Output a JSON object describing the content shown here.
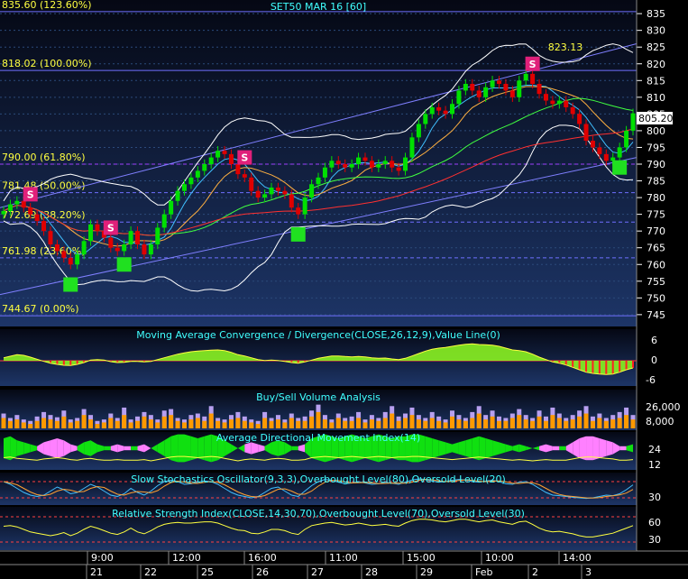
{
  "title": "SET50 MAR 16  [60]",
  "price_tag": "805.20",
  "peak_label": "823.13",
  "fib_levels": [
    {
      "label": "835.60 (123.60%)",
      "value": 835.6
    },
    {
      "label": "818.02 (100.00%)",
      "value": 818.02
    },
    {
      "label": "790.00 (61.80%)",
      "value": 790.0
    },
    {
      "label": "781.48 (50.00%)",
      "value": 781.48
    },
    {
      "label": "772.69 (38.20%)",
      "value": 772.69
    },
    {
      "label": "761.98 (23.60%)",
      "value": 761.98
    },
    {
      "label": "744.67 (0.00%)",
      "value": 744.67
    }
  ],
  "panels": {
    "macd": {
      "title": "Moving Average Convergence / Divergence(CLOSE,26,12,9),Value Line(0)",
      "ticks": [
        "6",
        "0",
        "-6"
      ]
    },
    "volume": {
      "title": "Buy/Sell Volume Analysis",
      "ticks": [
        "26,000",
        "8,000"
      ]
    },
    "adx": {
      "title": "Average Directional Movement Index(14)",
      "ticks": [
        "24",
        "12"
      ]
    },
    "stoch": {
      "title": "Slow Stochastics Oscillator(9,3,3),Overbought Level(80),Oversold Level(20)",
      "ticks": [
        "30"
      ]
    },
    "rsi": {
      "title": "Relative Strength Index(CLOSE,14,30,70),Overbought Level(70),Oversold Level(30)",
      "ticks": [
        "60",
        "30"
      ]
    }
  },
  "time_axis": {
    "hours": [
      "9:00",
      "12:00",
      "16:00",
      "11:00",
      "15:00",
      "10:00",
      "14:00"
    ],
    "days": [
      "21",
      "22",
      "25",
      "26",
      "27",
      "28",
      "29",
      "Feb",
      "2",
      "3"
    ]
  },
  "colors": {
    "bull": "#00e000",
    "bear": "#e00000",
    "signal_buy": "#20e020",
    "signal_sell": "#e0207a",
    "text": "#ffff40",
    "axis_text": "#ffffff"
  },
  "chart_data": {
    "type": "candlestick",
    "symbol": "SET50 MAR 16",
    "interval": "60",
    "ylim": [
      742,
      838
    ],
    "y_ticks": [
      835,
      830,
      825,
      820,
      815,
      810,
      805,
      800,
      795,
      790,
      785,
      780,
      775,
      770,
      765,
      760,
      755,
      750,
      745
    ],
    "last_price": 805.2,
    "high_annotation": 823.13,
    "close": [
      776,
      778,
      779,
      777,
      775,
      773,
      770,
      766,
      764,
      762,
      760,
      763,
      767,
      772,
      770,
      768,
      765,
      764,
      766,
      770,
      766,
      763,
      766,
      771,
      775,
      779,
      782,
      784,
      786,
      788,
      790,
      792,
      794,
      793,
      790,
      787,
      786,
      782,
      780,
      781,
      783,
      782,
      781,
      777,
      775,
      780,
      784,
      786,
      789,
      791,
      790,
      789,
      790,
      792,
      791,
      789,
      790,
      791,
      789,
      788,
      792,
      798,
      802,
      805,
      807,
      806,
      805,
      808,
      812,
      814,
      812,
      810,
      813,
      815,
      814,
      812,
      810,
      815,
      817,
      814,
      811,
      809,
      808,
      809,
      807,
      805,
      802,
      797,
      795,
      793,
      791,
      792,
      795,
      800,
      805.2
    ],
    "signals": [
      {
        "type": "S",
        "index": 4
      },
      {
        "type": "S",
        "index": 16
      },
      {
        "type": "S",
        "index": 36
      },
      {
        "type": "S",
        "index": 79
      },
      {
        "type": "B",
        "index": 10
      },
      {
        "type": "B",
        "index": 18
      },
      {
        "type": "B",
        "index": 44
      },
      {
        "type": "B",
        "index": 92
      }
    ],
    "macd_hist": [
      1,
      1.5,
      2,
      1.8,
      1.2,
      0.5,
      -0.2,
      -0.8,
      -1.2,
      -1.5,
      -1.6,
      -1.2,
      -0.6,
      0.2,
      0.4,
      0.2,
      -0.3,
      -0.6,
      -0.5,
      -0.2,
      -0.2,
      -0.4,
      -0.2,
      0.4,
      1,
      1.6,
      2.2,
      2.6,
      3,
      3.2,
      3.4,
      3.5,
      3.6,
      3.4,
      2.8,
      2,
      1.6,
      1,
      0.4,
      0.1,
      0.2,
      0.1,
      -0.2,
      -0.6,
      -0.8,
      -0.4,
      0.2,
      0.8,
      1.2,
      1.6,
      1.6,
      1.4,
      1.3,
      1.4,
      1.3,
      1,
      0.8,
      0.9,
      0.6,
      0.4,
      0.8,
      1.6,
      2.4,
      3.2,
      3.8,
      4.2,
      4.4,
      4.8,
      5.2,
      5.5,
      5.6,
      5.4,
      5.3,
      5.2,
      4.8,
      4.2,
      3.6,
      3.4,
      3,
      2.2,
      1.2,
      0.4,
      -0.4,
      -0.8,
      -1.4,
      -2.2,
      -3,
      -3.8,
      -4.2,
      -4.4,
      -4.6,
      -4.4,
      -3.8,
      -3,
      -2.4
    ],
    "volume_buy": [
      20,
      14,
      18,
      12,
      10,
      16,
      22,
      18,
      15,
      24,
      12,
      14,
      26,
      18,
      10,
      12,
      20,
      14,
      28,
      12,
      16,
      22,
      18,
      12,
      24,
      26,
      14,
      12,
      18,
      20,
      16,
      30,
      14,
      12,
      18,
      22,
      16,
      12,
      10,
      22,
      14,
      18,
      12,
      20,
      14,
      16,
      24,
      32,
      18,
      12,
      20,
      14,
      16,
      22,
      12,
      18,
      14,
      22,
      30,
      16,
      20,
      28,
      18,
      14,
      22,
      16,
      12,
      24,
      18,
      14,
      22,
      30,
      18,
      24,
      16,
      14,
      20,
      26,
      18,
      14,
      24,
      16,
      28,
      20,
      14,
      18,
      24,
      30,
      16,
      20,
      14,
      18,
      22,
      28,
      18
    ],
    "volume_sell": [
      14,
      10,
      12,
      8,
      6,
      10,
      14,
      12,
      10,
      16,
      8,
      10,
      18,
      12,
      6,
      8,
      14,
      10,
      18,
      8,
      10,
      16,
      12,
      8,
      16,
      18,
      10,
      8,
      12,
      14,
      10,
      20,
      10,
      8,
      12,
      14,
      10,
      8,
      6,
      14,
      10,
      12,
      8,
      14,
      10,
      10,
      16,
      22,
      12,
      8,
      14,
      10,
      10,
      14,
      8,
      12,
      10,
      14,
      20,
      10,
      14,
      18,
      12,
      10,
      14,
      10,
      8,
      16,
      12,
      10,
      14,
      20,
      12,
      16,
      10,
      10,
      14,
      18,
      12,
      10,
      16,
      10,
      18,
      14,
      10,
      12,
      16,
      20,
      10,
      14,
      10,
      12,
      14,
      18,
      12
    ],
    "adx_diff": [
      10,
      12,
      8,
      6,
      4,
      -2,
      -6,
      -8,
      -10,
      -8,
      -4,
      2,
      6,
      8,
      4,
      2,
      -2,
      -4,
      -2,
      2,
      -2,
      -4,
      0,
      4,
      8,
      12,
      14,
      14,
      12,
      10,
      12,
      14,
      12,
      8,
      4,
      0,
      -4,
      -6,
      -4,
      2,
      6,
      8,
      6,
      2,
      -2,
      4,
      10,
      12,
      14,
      12,
      10,
      12,
      14,
      12,
      10,
      12,
      14,
      12,
      10,
      12,
      12,
      14,
      14,
      12,
      10,
      8,
      6,
      4,
      6,
      8,
      10,
      12,
      10,
      8,
      6,
      4,
      2,
      4,
      2,
      0,
      -2,
      -4,
      -2,
      2,
      -2,
      -6,
      -10,
      -12,
      -12,
      -10,
      -8,
      -6,
      -2,
      2,
      4
    ],
    "stoch_k": [
      80,
      70,
      55,
      40,
      30,
      25,
      30,
      45,
      60,
      50,
      35,
      40,
      55,
      70,
      60,
      45,
      30,
      25,
      35,
      55,
      40,
      30,
      45,
      65,
      80,
      85,
      80,
      70,
      72,
      78,
      82,
      80,
      70,
      55,
      40,
      30,
      25,
      20,
      25,
      40,
      55,
      60,
      45,
      30,
      25,
      45,
      65,
      80,
      88,
      85,
      78,
      72,
      75,
      80,
      75,
      70,
      72,
      78,
      74,
      70,
      78,
      86,
      90,
      88,
      82,
      78,
      80,
      85,
      88,
      86,
      80,
      78,
      82,
      85,
      80,
      72,
      70,
      78,
      80,
      70,
      55,
      40,
      30,
      28,
      25,
      22,
      20,
      18,
      20,
      25,
      30,
      28,
      35,
      50,
      68
    ],
    "rsi": [
      55,
      56,
      54,
      50,
      46,
      44,
      42,
      40,
      42,
      45,
      40,
      44,
      50,
      55,
      52,
      48,
      44,
      42,
      46,
      52,
      46,
      43,
      48,
      54,
      58,
      60,
      61,
      60,
      60,
      61,
      62,
      62,
      60,
      56,
      52,
      49,
      48,
      44,
      43,
      46,
      50,
      50,
      48,
      44,
      42,
      50,
      56,
      58,
      60,
      61,
      59,
      57,
      58,
      60,
      58,
      56,
      57,
      58,
      56,
      55,
      60,
      64,
      66,
      66,
      65,
      63,
      62,
      64,
      66,
      66,
      64,
      62,
      64,
      65,
      62,
      60,
      58,
      62,
      63,
      58,
      52,
      48,
      46,
      47,
      45,
      43,
      40,
      38,
      38,
      40,
      42,
      44,
      48,
      52,
      56
    ]
  }
}
